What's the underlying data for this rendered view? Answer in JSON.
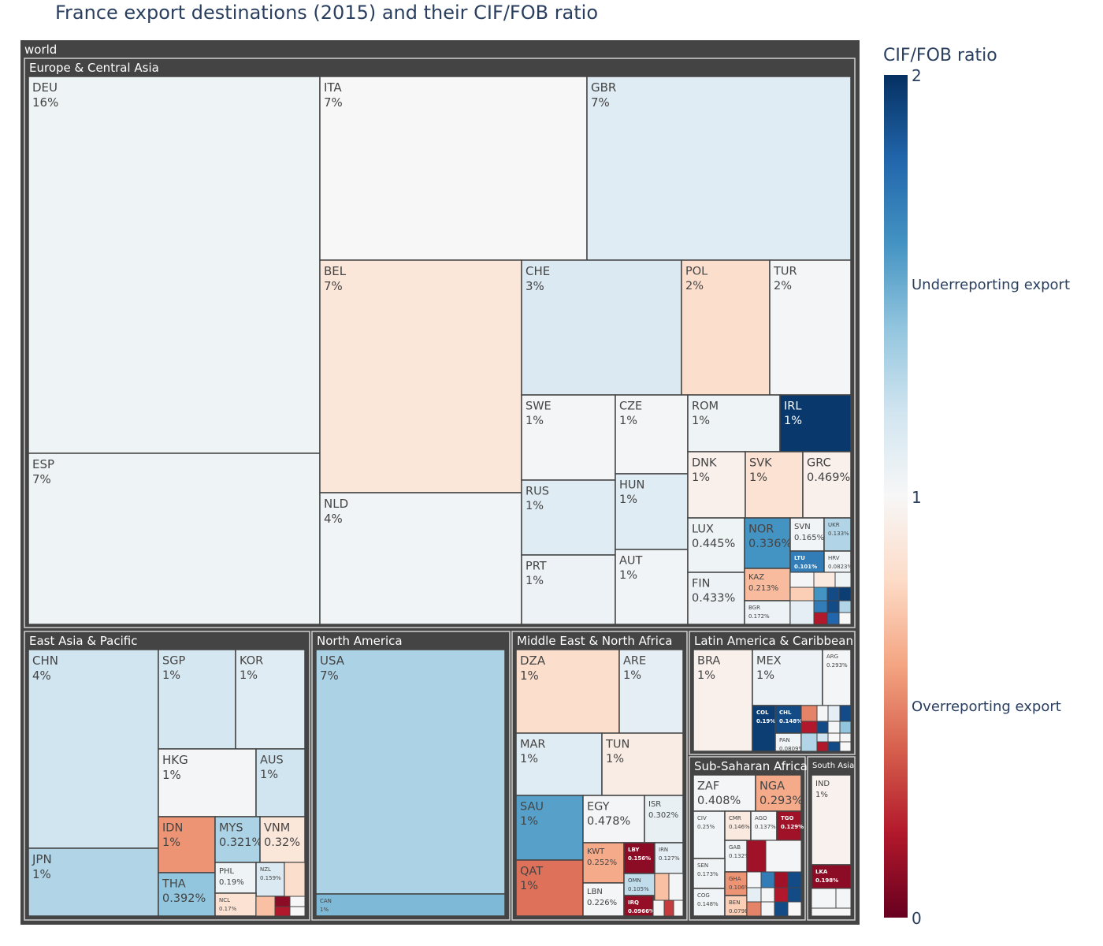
{
  "title": "France export destinations (2015) and their CIF/FOB ratio",
  "chart_data": {
    "type": "treemap",
    "title": "France export destinations (2015) and their CIF/FOB ratio",
    "root": "world",
    "colorbar": {
      "title": "CIF/FOB ratio",
      "range": [
        0,
        2
      ],
      "ticks": [
        {
          "value": 2,
          "label": "2"
        },
        {
          "value": 1.5,
          "label": "Underreporting export"
        },
        {
          "value": 1,
          "label": "1"
        },
        {
          "value": 0.5,
          "label": "Overreporting export"
        },
        {
          "value": 0,
          "label": "0"
        }
      ],
      "colorscale": "RdBu"
    },
    "regions": [
      {
        "name": "Europe & Central Asia",
        "countries": [
          {
            "code": "DEU",
            "share": "16%",
            "ratio": 1.05
          },
          {
            "code": "ESP",
            "share": "7%",
            "ratio": 1.05
          },
          {
            "code": "ITA",
            "share": "7%",
            "ratio": 1.0
          },
          {
            "code": "GBR",
            "share": "7%",
            "ratio": 1.12
          },
          {
            "code": "BEL",
            "share": "7%",
            "ratio": 0.88
          },
          {
            "code": "NLD",
            "share": "4%",
            "ratio": 1.03
          },
          {
            "code": "CHE",
            "share": "3%",
            "ratio": 1.15
          },
          {
            "code": "POL",
            "share": "2%",
            "ratio": 0.82
          },
          {
            "code": "TUR",
            "share": "2%",
            "ratio": 1.02
          },
          {
            "code": "SWE",
            "share": "1%",
            "ratio": 1.02
          },
          {
            "code": "CZE",
            "share": "1%",
            "ratio": 1.02
          },
          {
            "code": "ROM",
            "share": "1%",
            "ratio": 1.05
          },
          {
            "code": "IRL",
            "share": "1%",
            "ratio": 1.97
          },
          {
            "code": "RUS",
            "share": "1%",
            "ratio": 1.12
          },
          {
            "code": "HUN",
            "share": "1%",
            "ratio": 1.12
          },
          {
            "code": "PRT",
            "share": "1%",
            "ratio": 1.06
          },
          {
            "code": "AUT",
            "share": "1%",
            "ratio": 1.03
          },
          {
            "code": "DNK",
            "share": "1%",
            "ratio": 0.95
          },
          {
            "code": "SVK",
            "share": "1%",
            "ratio": 0.85
          },
          {
            "code": "GRC",
            "share": "0.469%",
            "ratio": 0.95
          },
          {
            "code": "LUX",
            "share": "0.445%",
            "ratio": 1.05
          },
          {
            "code": "FIN",
            "share": "0.433%",
            "ratio": 1.06
          },
          {
            "code": "NOR",
            "share": "0.336%",
            "ratio": 1.6
          },
          {
            "code": "SVN",
            "share": "0.165%",
            "ratio": 1.03
          },
          {
            "code": "UKR",
            "share": "0.133%",
            "ratio": 1.3
          },
          {
            "code": "LTU",
            "share": "0.101%",
            "ratio": 1.7
          },
          {
            "code": "HRV",
            "share": "0.0823%",
            "ratio": 1.04
          },
          {
            "code": "KAZ",
            "share": "0.213%",
            "ratio": 0.68
          },
          {
            "code": "BGR",
            "share": "0.172%",
            "ratio": 1.06
          }
        ]
      },
      {
        "name": "East Asia & Pacific",
        "countries": [
          {
            "code": "CHN",
            "share": "4%",
            "ratio": 1.2
          },
          {
            "code": "JPN",
            "share": "1%",
            "ratio": 1.3
          },
          {
            "code": "SGP",
            "share": "1%",
            "ratio": 1.18
          },
          {
            "code": "KOR",
            "share": "1%",
            "ratio": 1.12
          },
          {
            "code": "HKG",
            "share": "1%",
            "ratio": 1.02
          },
          {
            "code": "AUS",
            "share": "1%",
            "ratio": 1.2
          },
          {
            "code": "IDN",
            "share": "1%",
            "ratio": 0.55
          },
          {
            "code": "THA",
            "share": "0.392%",
            "ratio": 1.4
          },
          {
            "code": "MYS",
            "share": "0.321%",
            "ratio": 1.32
          },
          {
            "code": "VNM",
            "share": "0.32%",
            "ratio": 0.88
          },
          {
            "code": "PHL",
            "share": "0.19%",
            "ratio": 1.05
          },
          {
            "code": "NZL",
            "share": "0.159%",
            "ratio": 1.15
          },
          {
            "code": "NCL",
            "share": "0.17%",
            "ratio": 0.85
          }
        ]
      },
      {
        "name": "North America",
        "countries": [
          {
            "code": "USA",
            "share": "7%",
            "ratio": 1.32
          },
          {
            "code": "CAN",
            "share": "1%",
            "ratio": 1.45
          }
        ]
      },
      {
        "name": "Middle East & North Africa",
        "countries": [
          {
            "code": "DZA",
            "share": "1%",
            "ratio": 0.82
          },
          {
            "code": "ARE",
            "share": "1%",
            "ratio": 1.1
          },
          {
            "code": "MAR",
            "share": "1%",
            "ratio": 1.12
          },
          {
            "code": "TUN",
            "share": "1%",
            "ratio": 0.92
          },
          {
            "code": "SAU",
            "share": "1%",
            "ratio": 1.55
          },
          {
            "code": "QAT",
            "share": "1%",
            "ratio": 0.45
          },
          {
            "code": "EGY",
            "share": "0.478%",
            "ratio": 1.02
          },
          {
            "code": "ISR",
            "share": "0.302%",
            "ratio": 1.08
          },
          {
            "code": "KWT",
            "share": "0.252%",
            "ratio": 0.62
          },
          {
            "code": "LBY",
            "share": "0.156%",
            "ratio": 0.1
          },
          {
            "code": "IRN",
            "share": "0.127%",
            "ratio": 1.1
          },
          {
            "code": "LBN",
            "share": "0.226%",
            "ratio": 1.02
          },
          {
            "code": "OMN",
            "share": "0.105%",
            "ratio": 1.25
          },
          {
            "code": "IRQ",
            "share": "0.0966%",
            "ratio": 0.12
          }
        ]
      },
      {
        "name": "Latin America & Caribbean",
        "countries": [
          {
            "code": "BRA",
            "share": "1%",
            "ratio": 0.95
          },
          {
            "code": "MEX",
            "share": "1%",
            "ratio": 1.06
          },
          {
            "code": "ARG",
            "share": "0.293%",
            "ratio": 1.02
          },
          {
            "code": "COL",
            "share": "0.19%",
            "ratio": 1.95
          },
          {
            "code": "CHL",
            "share": "0.148%",
            "ratio": 1.9
          },
          {
            "code": "PAN",
            "share": "0.0809%",
            "ratio": 1.03
          }
        ]
      },
      {
        "name": "Sub-Saharan Africa",
        "countries": [
          {
            "code": "ZAF",
            "share": "0.408%",
            "ratio": 1.02
          },
          {
            "code": "NGA",
            "share": "0.293%",
            "ratio": 0.62
          },
          {
            "code": "CIV",
            "share": "0.25%",
            "ratio": 1.03
          },
          {
            "code": "CMR",
            "share": "0.146%",
            "ratio": 0.9
          },
          {
            "code": "AGO",
            "share": "0.137%",
            "ratio": 1.02
          },
          {
            "code": "TGO",
            "share": "0.129%",
            "ratio": 0.15
          },
          {
            "code": "GAB",
            "share": "0.132%",
            "ratio": 1.03
          },
          {
            "code": "SEN",
            "share": "0.173%",
            "ratio": 1.04
          },
          {
            "code": "COG",
            "share": "0.148%",
            "ratio": 1.03
          },
          {
            "code": "GHA",
            "share": "0.106%",
            "ratio": 0.55
          },
          {
            "code": "BEN",
            "share": "0.0798%",
            "ratio": 0.75
          }
        ]
      },
      {
        "name": "South Asia",
        "countries": [
          {
            "code": "IND",
            "share": "1%",
            "ratio": 0.96
          },
          {
            "code": "LKA",
            "share": "0.198%",
            "ratio": 0.1
          }
        ]
      }
    ]
  }
}
